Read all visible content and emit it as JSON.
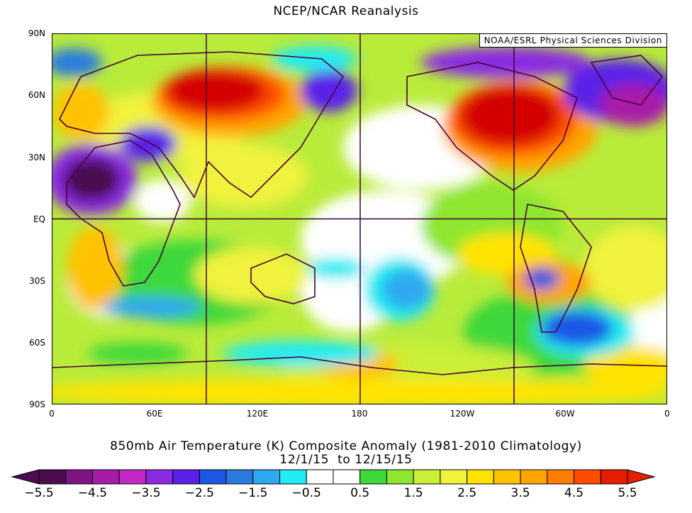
{
  "title": "NCEP/NCAR Reanalysis",
  "credit": "NOAA/ESRL Physical Sciences Division",
  "map": {
    "latitude_labels": [
      "90N",
      "60N",
      "30N",
      "EQ",
      "30S",
      "60S",
      "90S"
    ],
    "longitude_labels": [
      "0",
      "60E",
      "120E",
      "180",
      "120W",
      "60W",
      "0"
    ],
    "grid_lines": {
      "longitudes": [
        "90E",
        "180",
        "90W"
      ],
      "latitude": "EQ"
    }
  },
  "subtitle_line1": "850mb Air Temperature (K) Composite Anomaly (1981-2010 Climatology)",
  "subtitle_line2": "12/1/15  to 12/15/15",
  "colorbar": {
    "labels": [
      "-5.5",
      "-4.5",
      "-3.5",
      "-2.5",
      "-1.5",
      "-0.5",
      "0.5",
      "1.5",
      "2.5",
      "3.5",
      "4.5",
      "5.5"
    ],
    "colors": [
      "#4a0c4f",
      "#7e1585",
      "#a81aa8",
      "#c327c4",
      "#8a2be2",
      "#5a20e8",
      "#1e56e6",
      "#2a7be0",
      "#2ea8ee",
      "#22ebf2",
      "#ffffff",
      "#ffffff",
      "#3ed83a",
      "#8fe62e",
      "#c9ef38",
      "#f0f23c",
      "#ffe300",
      "#ffc200",
      "#ffa400",
      "#ff7d00",
      "#ff4d00",
      "#e61e00"
    ]
  }
}
